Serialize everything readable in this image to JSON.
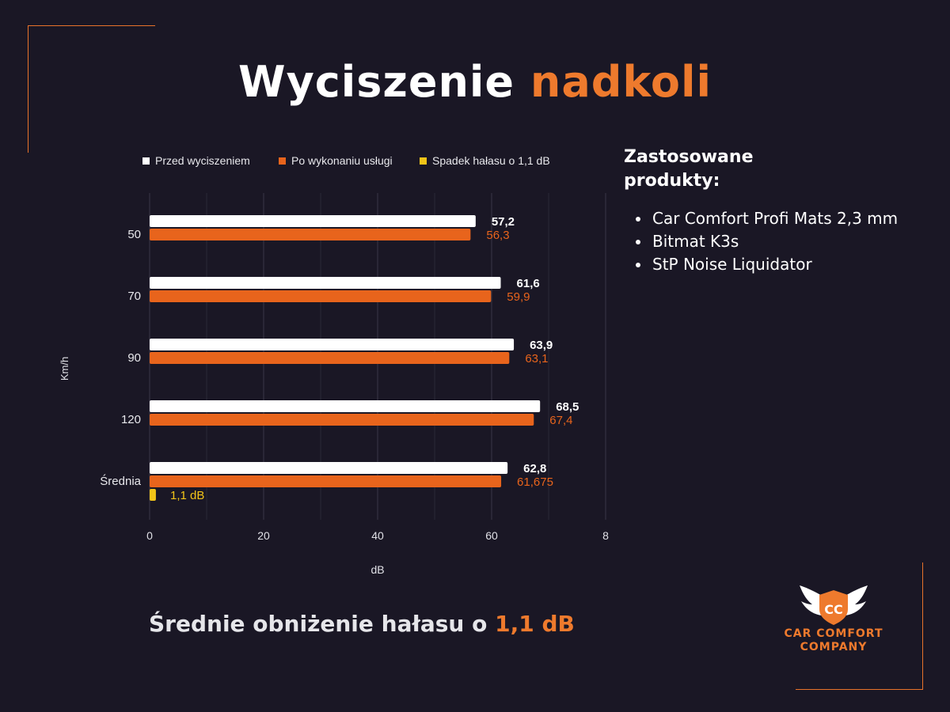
{
  "title": {
    "part1": "Wyciszenie",
    "part2": "nadkoli"
  },
  "side_panel": {
    "heading_line1": "Zastosowane",
    "heading_line2": "produkty:",
    "products": [
      "Car Comfort Profi Mats 2,3 mm",
      "Bitmat K3s",
      "StP Noise Liquidator"
    ]
  },
  "summary": {
    "text": "Średnie obniżenie hałasu o",
    "value": "1,1 dB"
  },
  "logo": {
    "line1": "CAR COMFORT",
    "line2": "COMPANY",
    "mark": "CC"
  },
  "colors": {
    "background": "#1a1725",
    "accent": "#ee7a2d",
    "series_before": "#ffffff",
    "series_after": "#e8641c",
    "series_drop": "#f2c418"
  },
  "chart_data": {
    "type": "bar",
    "orientation": "horizontal",
    "categories": [
      "50",
      "70",
      "90",
      "120",
      "Średnia"
    ],
    "series": [
      {
        "name": "Przed wyciszeniem",
        "values": [
          57.2,
          61.6,
          63.9,
          68.5,
          62.8
        ],
        "labels": [
          "57,2",
          "61,6",
          "63,9",
          "68,5",
          "62,8"
        ]
      },
      {
        "name": "Po wykonaniu usługi",
        "values": [
          56.3,
          59.9,
          63.1,
          67.4,
          61.675
        ],
        "labels": [
          "56,3",
          "59,9",
          "63,1",
          "67,4",
          "61,675"
        ]
      },
      {
        "name": "Spadek hałasu o 1,1 dB",
        "values": [
          null,
          null,
          null,
          null,
          1.1
        ],
        "labels": [
          "",
          "",
          "",
          "",
          "1,1 dB"
        ]
      }
    ],
    "xlabel": "dB",
    "ylabel": "Km/h",
    "xlim": [
      0,
      80
    ],
    "xticks": [
      "0",
      "20",
      "40",
      "60",
      "8"
    ],
    "grid": true,
    "legend": "top"
  }
}
